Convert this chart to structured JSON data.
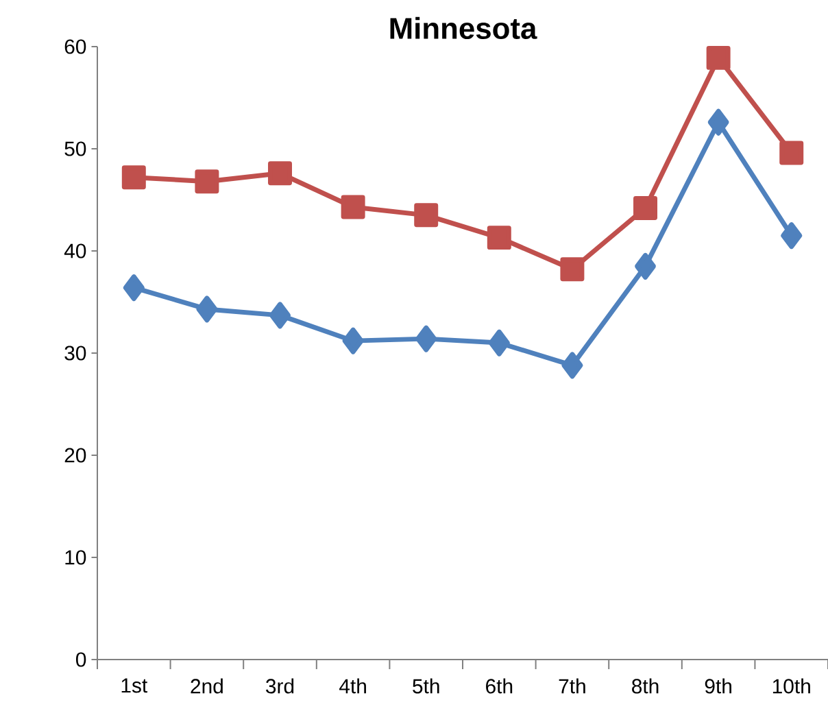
{
  "chart_data": {
    "type": "line",
    "title": "Minnesota",
    "categories": [
      "1st",
      "2nd",
      "3rd",
      "4th",
      "5th",
      "6th",
      "7th",
      "8th",
      "9th",
      "10th"
    ],
    "series": [
      {
        "color": "#c0504d",
        "marker": "square",
        "values": [
          47.2,
          46.8,
          47.6,
          44.3,
          43.5,
          41.3,
          38.2,
          44.2,
          58.9,
          49.6
        ]
      },
      {
        "color": "#4f81bd",
        "marker": "diamond",
        "values": [
          36.4,
          34.3,
          33.7,
          31.2,
          31.4,
          31.0,
          28.8,
          38.5,
          52.6,
          41.5
        ]
      }
    ],
    "ylim": [
      0,
      60
    ],
    "yticks": [
      0,
      10,
      20,
      30,
      40,
      50,
      60
    ]
  }
}
